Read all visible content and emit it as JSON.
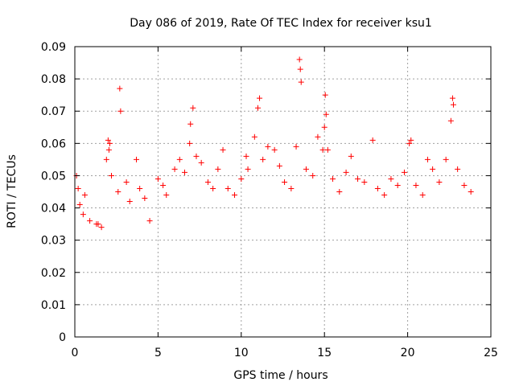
{
  "chart_data": {
    "type": "scatter",
    "title": "Day 086 of 2019, Rate Of TEC Index for receiver ksu1",
    "xlabel": "GPS time / hours",
    "ylabel": "ROTI / TECUs",
    "xlim": [
      0,
      25
    ],
    "ylim": [
      0,
      0.09
    ],
    "xticks": [
      0,
      5,
      10,
      15,
      20,
      25
    ],
    "xtick_labels": [
      "0",
      "5",
      "10",
      "15",
      "20",
      "25"
    ],
    "yticks": [
      0,
      0.01,
      0.02,
      0.03,
      0.04,
      0.05,
      0.06,
      0.07,
      0.08,
      0.09
    ],
    "ytick_labels": [
      "0",
      "0.01",
      "0.02",
      "0.03",
      "0.04",
      "0.05",
      "0.06",
      "0.07",
      "0.08",
      "0.09"
    ],
    "grid": true,
    "marker": "+",
    "series": [
      {
        "name": "ksu1",
        "color": "#ff0000",
        "points": [
          [
            0.1,
            0.05
          ],
          [
            0.2,
            0.046
          ],
          [
            0.3,
            0.041
          ],
          [
            0.5,
            0.038
          ],
          [
            0.6,
            0.044
          ],
          [
            0.9,
            0.036
          ],
          [
            1.3,
            0.035
          ],
          [
            1.4,
            0.035
          ],
          [
            1.6,
            0.034
          ],
          [
            1.9,
            0.055
          ],
          [
            2.0,
            0.061
          ],
          [
            2.05,
            0.058
          ],
          [
            2.1,
            0.06
          ],
          [
            2.2,
            0.05
          ],
          [
            2.6,
            0.045
          ],
          [
            2.7,
            0.077
          ],
          [
            2.75,
            0.07
          ],
          [
            3.1,
            0.048
          ],
          [
            3.3,
            0.042
          ],
          [
            3.7,
            0.055
          ],
          [
            3.9,
            0.046
          ],
          [
            4.2,
            0.043
          ],
          [
            4.5,
            0.036
          ],
          [
            5.0,
            0.049
          ],
          [
            5.3,
            0.047
          ],
          [
            5.5,
            0.044
          ],
          [
            6.0,
            0.052
          ],
          [
            6.3,
            0.055
          ],
          [
            6.6,
            0.051
          ],
          [
            6.9,
            0.06
          ],
          [
            6.95,
            0.066
          ],
          [
            7.1,
            0.071
          ],
          [
            7.3,
            0.056
          ],
          [
            7.6,
            0.054
          ],
          [
            8.0,
            0.048
          ],
          [
            8.3,
            0.046
          ],
          [
            8.6,
            0.052
          ],
          [
            8.9,
            0.058
          ],
          [
            9.2,
            0.046
          ],
          [
            9.6,
            0.044
          ],
          [
            10.0,
            0.049
          ],
          [
            10.3,
            0.056
          ],
          [
            10.4,
            0.052
          ],
          [
            10.8,
            0.062
          ],
          [
            11.0,
            0.071
          ],
          [
            11.1,
            0.074
          ],
          [
            11.3,
            0.055
          ],
          [
            11.6,
            0.059
          ],
          [
            12.0,
            0.058
          ],
          [
            12.3,
            0.053
          ],
          [
            12.6,
            0.048
          ],
          [
            13.0,
            0.046
          ],
          [
            13.3,
            0.059
          ],
          [
            13.5,
            0.086
          ],
          [
            13.55,
            0.083
          ],
          [
            13.6,
            0.079
          ],
          [
            13.9,
            0.052
          ],
          [
            14.3,
            0.05
          ],
          [
            14.6,
            0.062
          ],
          [
            14.9,
            0.058
          ],
          [
            15.0,
            0.065
          ],
          [
            15.05,
            0.075
          ],
          [
            15.1,
            0.069
          ],
          [
            15.2,
            0.058
          ],
          [
            15.5,
            0.049
          ],
          [
            15.9,
            0.045
          ],
          [
            16.3,
            0.051
          ],
          [
            16.6,
            0.056
          ],
          [
            17.0,
            0.049
          ],
          [
            17.4,
            0.048
          ],
          [
            17.9,
            0.061
          ],
          [
            18.2,
            0.046
          ],
          [
            18.6,
            0.044
          ],
          [
            19.0,
            0.049
          ],
          [
            19.4,
            0.047
          ],
          [
            19.8,
            0.051
          ],
          [
            20.1,
            0.06
          ],
          [
            20.2,
            0.061
          ],
          [
            20.5,
            0.047
          ],
          [
            20.9,
            0.044
          ],
          [
            21.2,
            0.055
          ],
          [
            21.5,
            0.052
          ],
          [
            21.9,
            0.048
          ],
          [
            22.3,
            0.055
          ],
          [
            22.6,
            0.067
          ],
          [
            22.7,
            0.074
          ],
          [
            22.75,
            0.072
          ],
          [
            23.0,
            0.052
          ],
          [
            23.4,
            0.047
          ],
          [
            23.8,
            0.045
          ]
        ]
      }
    ]
  }
}
